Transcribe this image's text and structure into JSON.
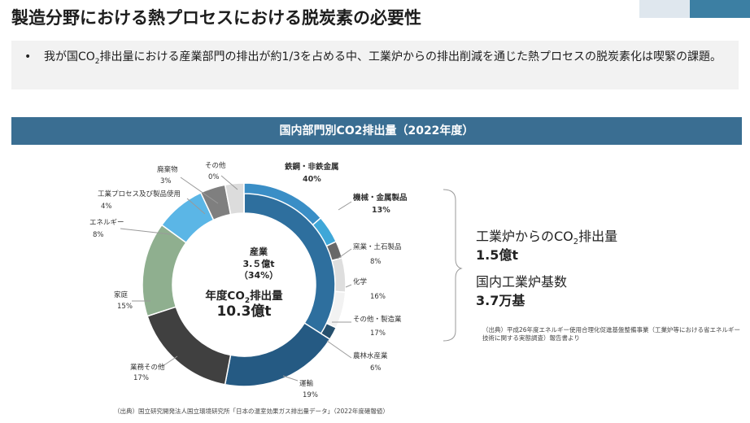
{
  "header": {
    "title": "製造分野における熱プロセスにおける脱炭素の必要性",
    "bullet_pre": "我が国CO",
    "bullet_sub": "2",
    "bullet_post": "排出量における産業部門の排出が約1/3を占める中、工業炉からの排出削減を通じた熱プロセスの脱炭素化は喫緊の課題。"
  },
  "chart_header": "国内部門別CO2排出量（2022年度）",
  "center": {
    "sector_label": "産業",
    "sector_value": "3.５億t",
    "sector_pct": "（34%）",
    "total_pre": "年度CO",
    "total_sub": "2",
    "total_post": "排出量",
    "total_value": "10.3億t"
  },
  "side": {
    "label1_pre": "工業炉からのCO",
    "label1_sub": "2",
    "label1_post": "排出量",
    "value1": "1.5億t",
    "label2": "国内工業炉基数",
    "value2": "3.7万基"
  },
  "notes": {
    "source_right": "（出典）平成26年度エネルギー使用合理化促進基盤整備事業（工業炉等における省エネルギー技術に関する実態調査）報告書より",
    "source_bottom": "（出典）国立研究開発法人国立環境研究所「日本の温室効果ガス排出量データ」（2022年度確報値）"
  },
  "colors": {
    "header_bar": "#3a6e92",
    "industry": "#2e6f9e",
    "transport": "#255a83",
    "business": "#404040",
    "household": "#8faf8f",
    "energy": "#5bb6e6",
    "industrial_process": "#7f7f7f",
    "waste": "#dcdcdc",
    "other": "#f3f3f3"
  },
  "chart_data": {
    "type": "pie",
    "outer": {
      "categories": [
        "産業",
        "運輸",
        "業務その他",
        "家庭",
        "エネルギー",
        "工業プロセス及び製品使用",
        "廃棄物",
        "その他"
      ],
      "values": [
        34,
        19,
        17,
        15,
        8,
        4,
        3,
        0
      ]
    },
    "inner": {
      "categories": [
        "鉄鋼・非鉄金属",
        "機械・金属製品",
        "窯業・土石製品",
        "化学",
        "その他・製造業",
        "農林水産業"
      ],
      "values": [
        40,
        13,
        8,
        16,
        17,
        6
      ]
    },
    "labels": [
      {
        "name": "鉄鋼・非鉄金属",
        "pct": "40%"
      },
      {
        "name": "機械・金属製品",
        "pct": "13%"
      },
      {
        "name": "窯業・土石製品",
        "pct": "8%"
      },
      {
        "name": "化学",
        "pct": "16%"
      },
      {
        "name": "その他・製造業",
        "pct": "17%"
      },
      {
        "name": "農林水産業",
        "pct": "6%"
      },
      {
        "name": "運輸",
        "pct": "19%"
      },
      {
        "name": "業務その他",
        "pct": "17%"
      },
      {
        "name": "家庭",
        "pct": "15%"
      },
      {
        "name": "エネルギー",
        "pct": "8%"
      },
      {
        "name": "工業プロセス及び製品使用",
        "pct": "4%"
      },
      {
        "name": "廃棄物",
        "pct": "3%"
      },
      {
        "name": "その他",
        "pct": "0%"
      }
    ]
  }
}
